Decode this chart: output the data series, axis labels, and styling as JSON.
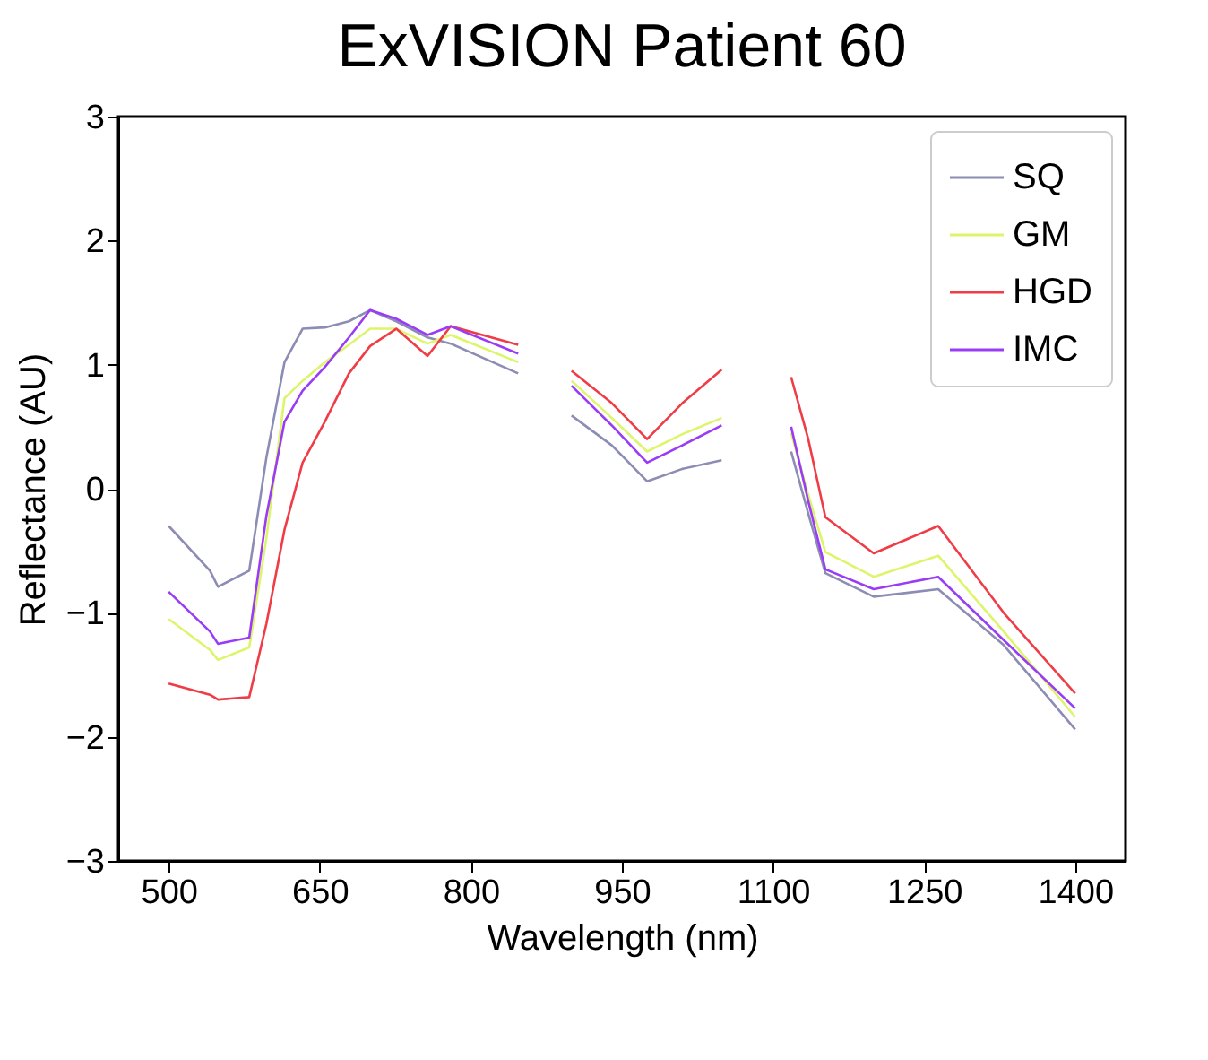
{
  "chart_data": {
    "type": "line",
    "title": "ExVISION Patient 60",
    "xlabel": "Wavelength (nm)",
    "ylabel": "Reflectance (AU)",
    "x": [
      500,
      541,
      549,
      580,
      597,
      615,
      633,
      655,
      679,
      700,
      726,
      757,
      780,
      847,
      875,
      900,
      940,
      975,
      1010,
      1049,
      1085,
      1118,
      1135,
      1152,
      1200,
      1264,
      1329,
      1400
    ],
    "series": [
      {
        "name": "SQ",
        "color": "#8c8cb4",
        "values": [
          -0.3,
          -0.66,
          -0.79,
          -0.66,
          0.25,
          1.02,
          1.29,
          1.3,
          1.35,
          1.44,
          1.35,
          1.22,
          1.17,
          0.93,
          null,
          0.59,
          0.35,
          0.06,
          0.16,
          0.23,
          null,
          0.3,
          -0.2,
          -0.68,
          -0.87,
          -0.81,
          -1.26,
          -1.94
        ]
      },
      {
        "name": "GM",
        "color": "#ddf56a",
        "values": [
          -1.05,
          -1.3,
          -1.38,
          -1.28,
          -0.4,
          0.73,
          0.87,
          1.02,
          1.16,
          1.29,
          1.29,
          1.17,
          1.24,
          1.02,
          null,
          0.87,
          0.57,
          0.3,
          0.44,
          0.57,
          null,
          0.45,
          -0.05,
          -0.51,
          -0.71,
          -0.54,
          -1.15,
          -1.84
        ]
      },
      {
        "name": "HGD",
        "color": "#f03c46",
        "values": [
          -1.57,
          -1.66,
          -1.7,
          -1.68,
          -1.09,
          -0.33,
          0.21,
          0.54,
          0.93,
          1.15,
          1.29,
          1.07,
          1.31,
          1.16,
          null,
          0.95,
          0.69,
          0.4,
          0.69,
          0.96,
          null,
          0.9,
          0.4,
          -0.23,
          -0.52,
          -0.3,
          -1.0,
          -1.65
        ]
      },
      {
        "name": "IMC",
        "color": "#9a3cf5",
        "values": [
          -0.83,
          -1.15,
          -1.25,
          -1.2,
          -0.22,
          0.54,
          0.79,
          0.98,
          1.22,
          1.44,
          1.37,
          1.24,
          1.31,
          1.09,
          null,
          0.83,
          0.51,
          0.21,
          0.35,
          0.51,
          null,
          0.5,
          -0.1,
          -0.65,
          -0.81,
          -0.71,
          -1.22,
          -1.77
        ]
      }
    ],
    "xlim": [
      450,
      1450
    ],
    "xticks": [
      500,
      650,
      800,
      950,
      1100,
      1250,
      1400
    ],
    "ylim": [
      -3,
      3
    ],
    "yticks": [
      -3,
      -2,
      -1,
      0,
      1,
      2,
      3
    ],
    "grid": false,
    "legend": "top right",
    "line_style": "solid",
    "marker": "none"
  }
}
